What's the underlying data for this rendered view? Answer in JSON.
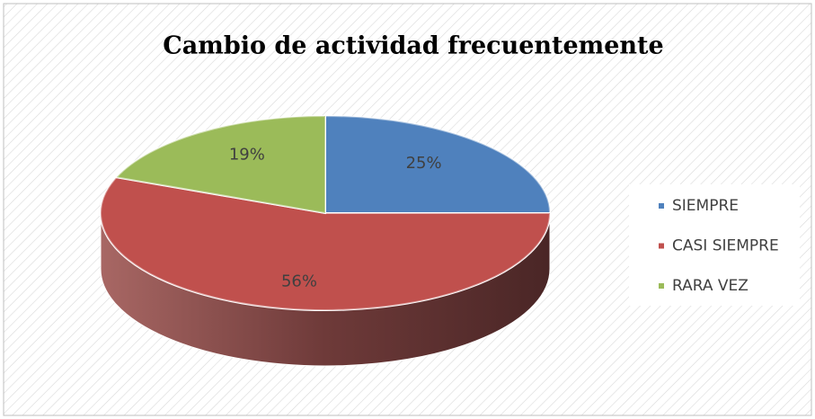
{
  "chart_data": {
    "type": "pie",
    "title": "Cambio de actividad frecuentemente",
    "categories": [
      "SIEMPRE",
      "CASI SIEMPRE",
      "RARA VEZ"
    ],
    "values": [
      25,
      56,
      19
    ],
    "value_labels": [
      "25%",
      "56%",
      "19%"
    ],
    "colors": [
      "#4f81bd",
      "#c0504d",
      "#9bbb59"
    ],
    "legend": "right"
  }
}
